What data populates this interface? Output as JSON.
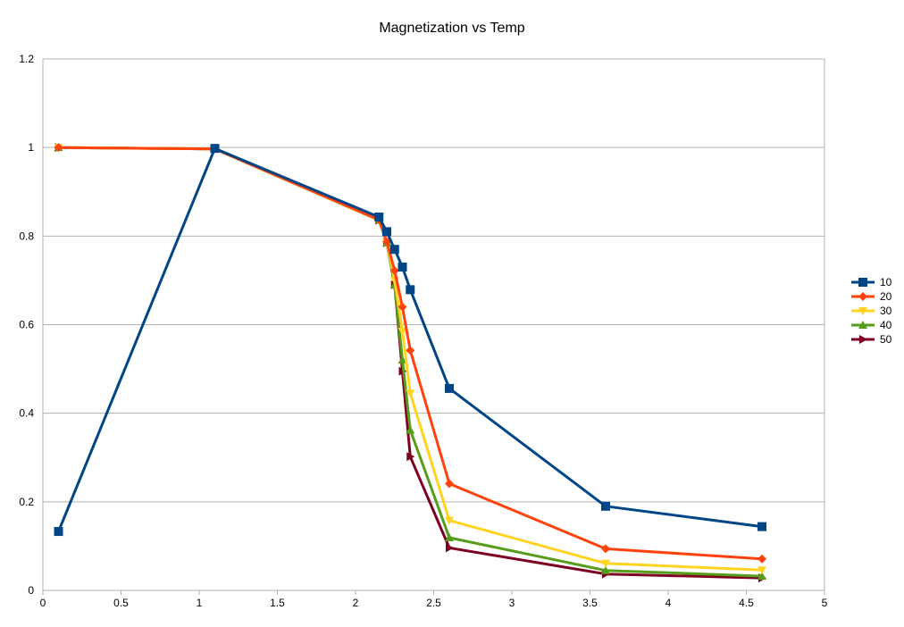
{
  "chart_data": {
    "type": "line",
    "title": "Magnetization vs Temp",
    "xlabel": "",
    "ylabel": "",
    "xlim": [
      0,
      5
    ],
    "ylim": [
      0,
      1.2
    ],
    "x_ticks": [
      "0",
      "0.5",
      "1",
      "1.5",
      "2",
      "2.5",
      "3",
      "3.5",
      "4",
      "4.5",
      "5"
    ],
    "y_ticks": [
      "0",
      "0.2",
      "0.4",
      "0.6",
      "0.8",
      "1",
      "1.2"
    ],
    "grid": "horizontal",
    "legend_position": "right",
    "series": [
      {
        "name": "10",
        "color": "#004586",
        "marker": "square",
        "x": [
          0.1,
          1.1,
          2.15,
          2.2,
          2.25,
          2.3,
          2.35,
          2.6,
          3.6,
          4.6
        ],
        "y": [
          0.133,
          0.998,
          0.843,
          0.81,
          0.77,
          0.73,
          0.679,
          0.456,
          0.19,
          0.144
        ]
      },
      {
        "name": "20",
        "color": "#ff420e",
        "marker": "diamond",
        "x": [
          0.1,
          1.1,
          2.15,
          2.2,
          2.25,
          2.3,
          2.35,
          2.6,
          3.6,
          4.6
        ],
        "y": [
          1.0,
          0.997,
          0.837,
          0.787,
          0.722,
          0.64,
          0.542,
          0.241,
          0.094,
          0.071
        ]
      },
      {
        "name": "30",
        "color": "#ffd320",
        "marker": "triangle-down",
        "x": [
          0.1,
          1.1,
          2.15,
          2.2,
          2.25,
          2.3,
          2.35,
          2.6,
          3.6,
          4.6
        ],
        "y": [
          1.0,
          0.997,
          0.836,
          0.785,
          0.7,
          0.585,
          0.445,
          0.158,
          0.061,
          0.046
        ]
      },
      {
        "name": "40",
        "color": "#579d1c",
        "marker": "triangle-up",
        "x": [
          0.1,
          1.1,
          2.15,
          2.2,
          2.25,
          2.3,
          2.35,
          2.6,
          3.6,
          4.6
        ],
        "y": [
          1.0,
          0.997,
          0.836,
          0.785,
          0.69,
          0.52,
          0.362,
          0.119,
          0.045,
          0.032
        ]
      },
      {
        "name": "50",
        "color": "#7e0021",
        "marker": "triangle-right",
        "x": [
          0.1,
          1.1,
          2.15,
          2.2,
          2.25,
          2.3,
          2.35,
          2.6,
          3.6,
          4.6
        ],
        "y": [
          1.0,
          0.997,
          0.836,
          0.785,
          0.69,
          0.495,
          0.302,
          0.096,
          0.037,
          0.028
        ]
      }
    ]
  }
}
